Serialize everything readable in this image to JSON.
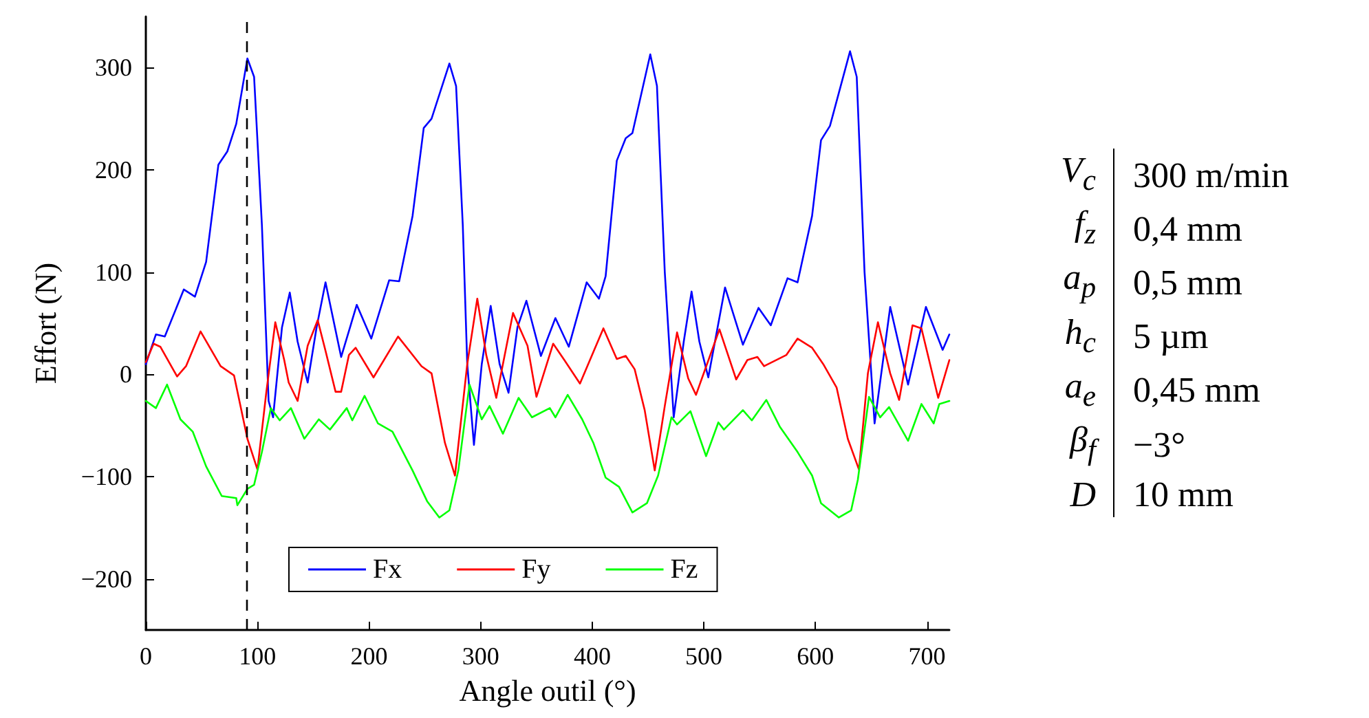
{
  "chart_data": {
    "type": "line",
    "xlabel": "Angle outil (°)",
    "ylabel": "Effort (N)",
    "xlim": [
      0,
      720
    ],
    "xticks": [
      0,
      100,
      200,
      300,
      400,
      500,
      600,
      700
    ],
    "ylim": [
      -250,
      350
    ],
    "yticks": [
      {
        "value": -200,
        "label": "−200"
      },
      {
        "value": -100,
        "label": "−100"
      },
      0,
      100,
      200,
      300
    ],
    "grid": false,
    "legend": "bottom",
    "marker": "none",
    "line_style": "solid",
    "ref_lines": [
      {
        "axis": "x",
        "value": 90,
        "label": null,
        "color": "#000000",
        "line_style": "dashed"
      }
    ],
    "series": [
      {
        "name": "Fx",
        "color": "#0000ff",
        "x": [
          0,
          9,
          17,
          34,
          44,
          54,
          65,
          73,
          81,
          91,
          97,
          104,
          110,
          114,
          122,
          129,
          136,
          145,
          153,
          161,
          175,
          189,
          202,
          218,
          227,
          239,
          249,
          256,
          272,
          278,
          284,
          288,
          294,
          301,
          309,
          317,
          325,
          333,
          341,
          354,
          367,
          379,
          395,
          406,
          412,
          422,
          430,
          436,
          452,
          458,
          465,
          473,
          482,
          489,
          496,
          504,
          519,
          535,
          549,
          560,
          575,
          584,
          597,
          605,
          613,
          631,
          637,
          644,
          653,
          667,
          683,
          699,
          714,
          720
        ],
        "values": [
          10,
          39,
          37,
          83,
          76,
          110,
          205,
          218,
          245,
          309,
          291,
          146,
          -26,
          -42,
          46,
          80,
          32,
          -8,
          46,
          90,
          17,
          68,
          35,
          92,
          91,
          155,
          241,
          250,
          304,
          282,
          146,
          10,
          -69,
          10,
          67,
          10,
          -18,
          46,
          72,
          18,
          55,
          27,
          90,
          74,
          96,
          209,
          231,
          236,
          313,
          282,
          100,
          -42,
          32,
          81,
          32,
          -3,
          85,
          29,
          65,
          48,
          94,
          90,
          155,
          229,
          243,
          316,
          291,
          100,
          -48,
          66,
          -10,
          66,
          24,
          39
        ]
      },
      {
        "name": "Fy",
        "color": "#ff0000",
        "x": [
          0,
          7,
          13,
          28,
          36,
          49,
          67,
          79,
          91,
          100,
          108,
          116,
          124,
          128,
          136,
          145,
          154,
          161,
          170,
          175,
          182,
          188,
          204,
          226,
          247,
          256,
          268,
          277,
          288,
          297,
          305,
          314,
          329,
          342,
          350,
          365,
          375,
          389,
          410,
          422,
          430,
          438,
          447,
          456,
          465,
          476,
          486,
          493,
          514,
          529,
          539,
          548,
          554,
          574,
          584,
          597,
          607,
          619,
          629,
          639,
          647,
          656,
          667,
          675,
          687,
          695,
          710,
          720
        ],
        "values": [
          12,
          30,
          27,
          -2,
          8,
          42,
          8,
          -1,
          -63,
          -93,
          -17,
          51,
          14,
          -8,
          -26,
          28,
          53,
          23,
          -17,
          -17,
          19,
          26,
          -3,
          37,
          8,
          1,
          -67,
          -99,
          10,
          74,
          19,
          -23,
          60,
          28,
          -22,
          30,
          14,
          -9,
          45,
          15,
          18,
          5,
          -35,
          -94,
          -31,
          41,
          -4,
          -20,
          44,
          -5,
          14,
          17,
          8,
          19,
          35,
          26,
          10,
          -13,
          -63,
          -93,
          1,
          51,
          1,
          -25,
          48,
          45,
          -23,
          14
        ]
      },
      {
        "name": "Fz",
        "color": "#00ff00",
        "x": [
          0,
          9,
          19,
          31,
          42,
          54,
          68,
          81,
          82,
          91,
          97,
          104,
          112,
          120,
          130,
          142,
          155,
          165,
          180,
          185,
          196,
          208,
          221,
          239,
          252,
          263,
          272,
          280,
          290,
          301,
          308,
          320,
          334,
          346,
          362,
          367,
          378,
          391,
          401,
          412,
          424,
          436,
          449,
          459,
          471,
          476,
          488,
          502,
          513,
          518,
          535,
          543,
          556,
          568,
          584,
          597,
          605,
          621,
          632,
          638,
          648,
          658,
          666,
          683,
          695,
          706,
          711,
          720
        ],
        "values": [
          -26,
          -33,
          -10,
          -44,
          -56,
          -90,
          -119,
          -121,
          -128,
          -112,
          -108,
          -76,
          -33,
          -45,
          -33,
          -63,
          -44,
          -54,
          -33,
          -45,
          -21,
          -48,
          -56,
          -94,
          -124,
          -140,
          -133,
          -94,
          -10,
          -44,
          -31,
          -58,
          -23,
          -42,
          -33,
          -42,
          -20,
          -44,
          -67,
          -101,
          -110,
          -135,
          -126,
          -99,
          -42,
          -49,
          -36,
          -80,
          -47,
          -54,
          -35,
          -45,
          -25,
          -51,
          -76,
          -99,
          -126,
          -140,
          -133,
          -103,
          -22,
          -42,
          -32,
          -65,
          -29,
          -48,
          -29,
          -26
        ]
      }
    ],
    "annotations": [
      "V$_{c}$",
      "300 m/min",
      "f$_{z}$",
      "0,4 mm",
      "a$_{p}$",
      "0,5 mm",
      "h$_{c}$",
      "5 µm",
      "a$_{e}$",
      "0,45 mm",
      "β$_{f}$",
      "−3°",
      "D",
      "10 mm"
    ]
  }
}
